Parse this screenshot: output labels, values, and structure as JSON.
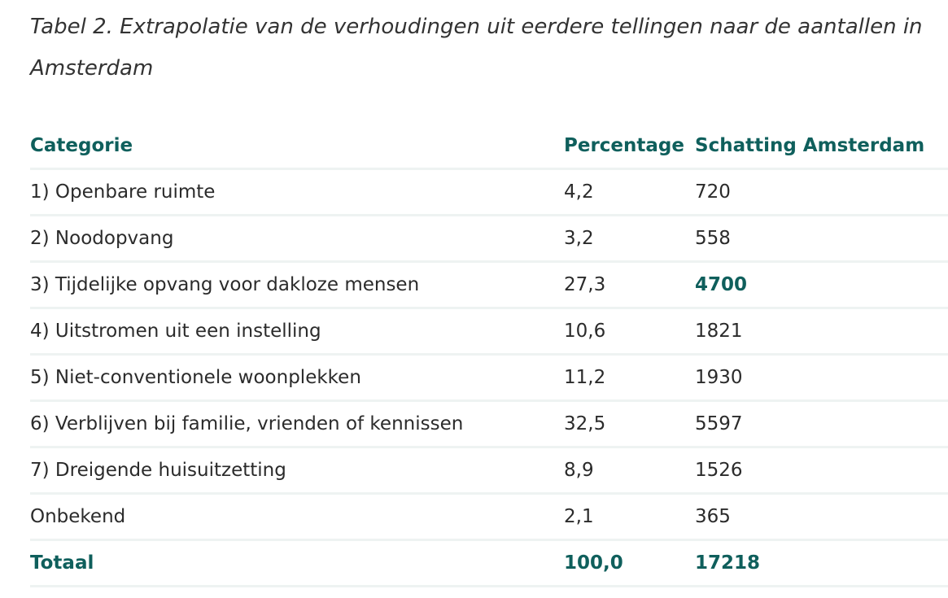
{
  "caption": "Tabel 2. Extrapolatie van de verhoudingen uit eerdere tellingen naar de aantallen in Amsterdam",
  "colors": {
    "accent": "#0f5f5c",
    "text": "#2b2b2b",
    "row_border": "#eef3f2"
  },
  "table": {
    "headers": {
      "categorie": "Categorie",
      "percentage": "Percentage",
      "schatting": "Schatting Amsterdam"
    },
    "rows": [
      {
        "categorie": "1) Openbare ruimte",
        "percentage": "4,2",
        "schatting": "720"
      },
      {
        "categorie": "2) Noodopvang",
        "percentage": "3,2",
        "schatting": "558"
      },
      {
        "categorie": "3) Tijdelijke opvang voor dakloze mensen",
        "percentage": "27,3",
        "schatting": "4700"
      },
      {
        "categorie": "4) Uitstromen uit een instelling",
        "percentage": "10,6",
        "schatting": "1821"
      },
      {
        "categorie": "5) Niet-conventionele woonplekken",
        "percentage": "11,2",
        "schatting": "1930"
      },
      {
        "categorie": "6) Verblijven bij familie, vrienden of kennissen",
        "percentage": "32,5",
        "schatting": "5597"
      },
      {
        "categorie": "7) Dreigende huisuitzetting",
        "percentage": "8,9",
        "schatting": "1526"
      },
      {
        "categorie": "Onbekend",
        "percentage": "2,1",
        "schatting": "365"
      }
    ],
    "total": {
      "categorie": "Totaal",
      "percentage": "100,0",
      "schatting": "17218"
    }
  }
}
